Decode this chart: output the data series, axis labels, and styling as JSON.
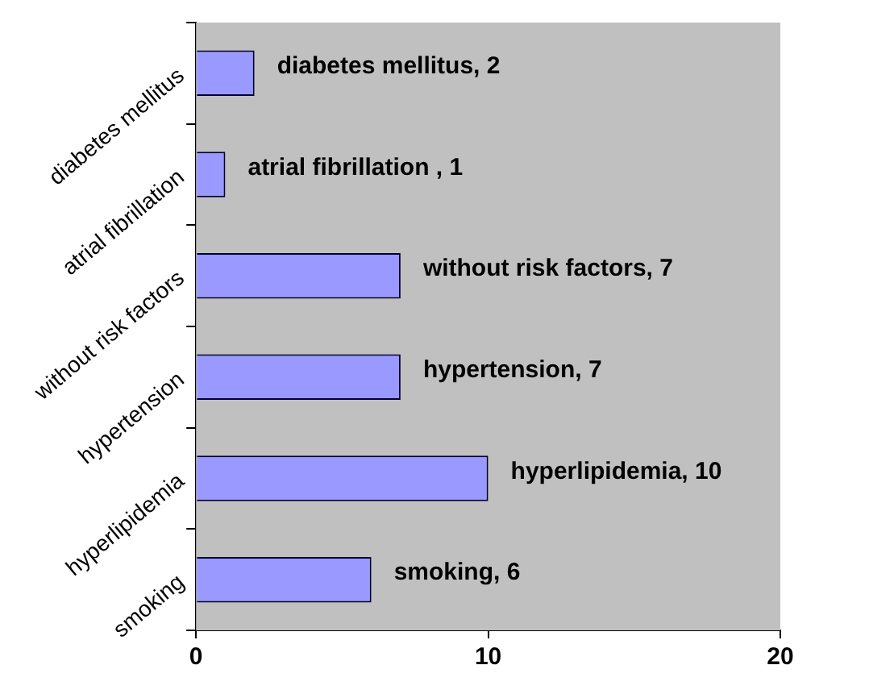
{
  "chart_data": {
    "type": "bar",
    "orientation": "horizontal",
    "categories": [
      "diabetes mellitus",
      "atrial fibrillation",
      "without risk factors",
      "hypertension",
      "hyperlipidemia",
      "smoking"
    ],
    "values": [
      2,
      1,
      7,
      7,
      10,
      6
    ],
    "value_labels": [
      "diabetes mellitus, 2",
      "atrial fibrillation , 1",
      "without risk factors, 7",
      "hypertension, 7",
      "hyperlipidemia, 10",
      "smoking, 6"
    ],
    "color": "#9999ff",
    "xlim": [
      0,
      20
    ],
    "xticks": [
      0,
      10,
      20
    ],
    "grid": false,
    "legend": false
  }
}
